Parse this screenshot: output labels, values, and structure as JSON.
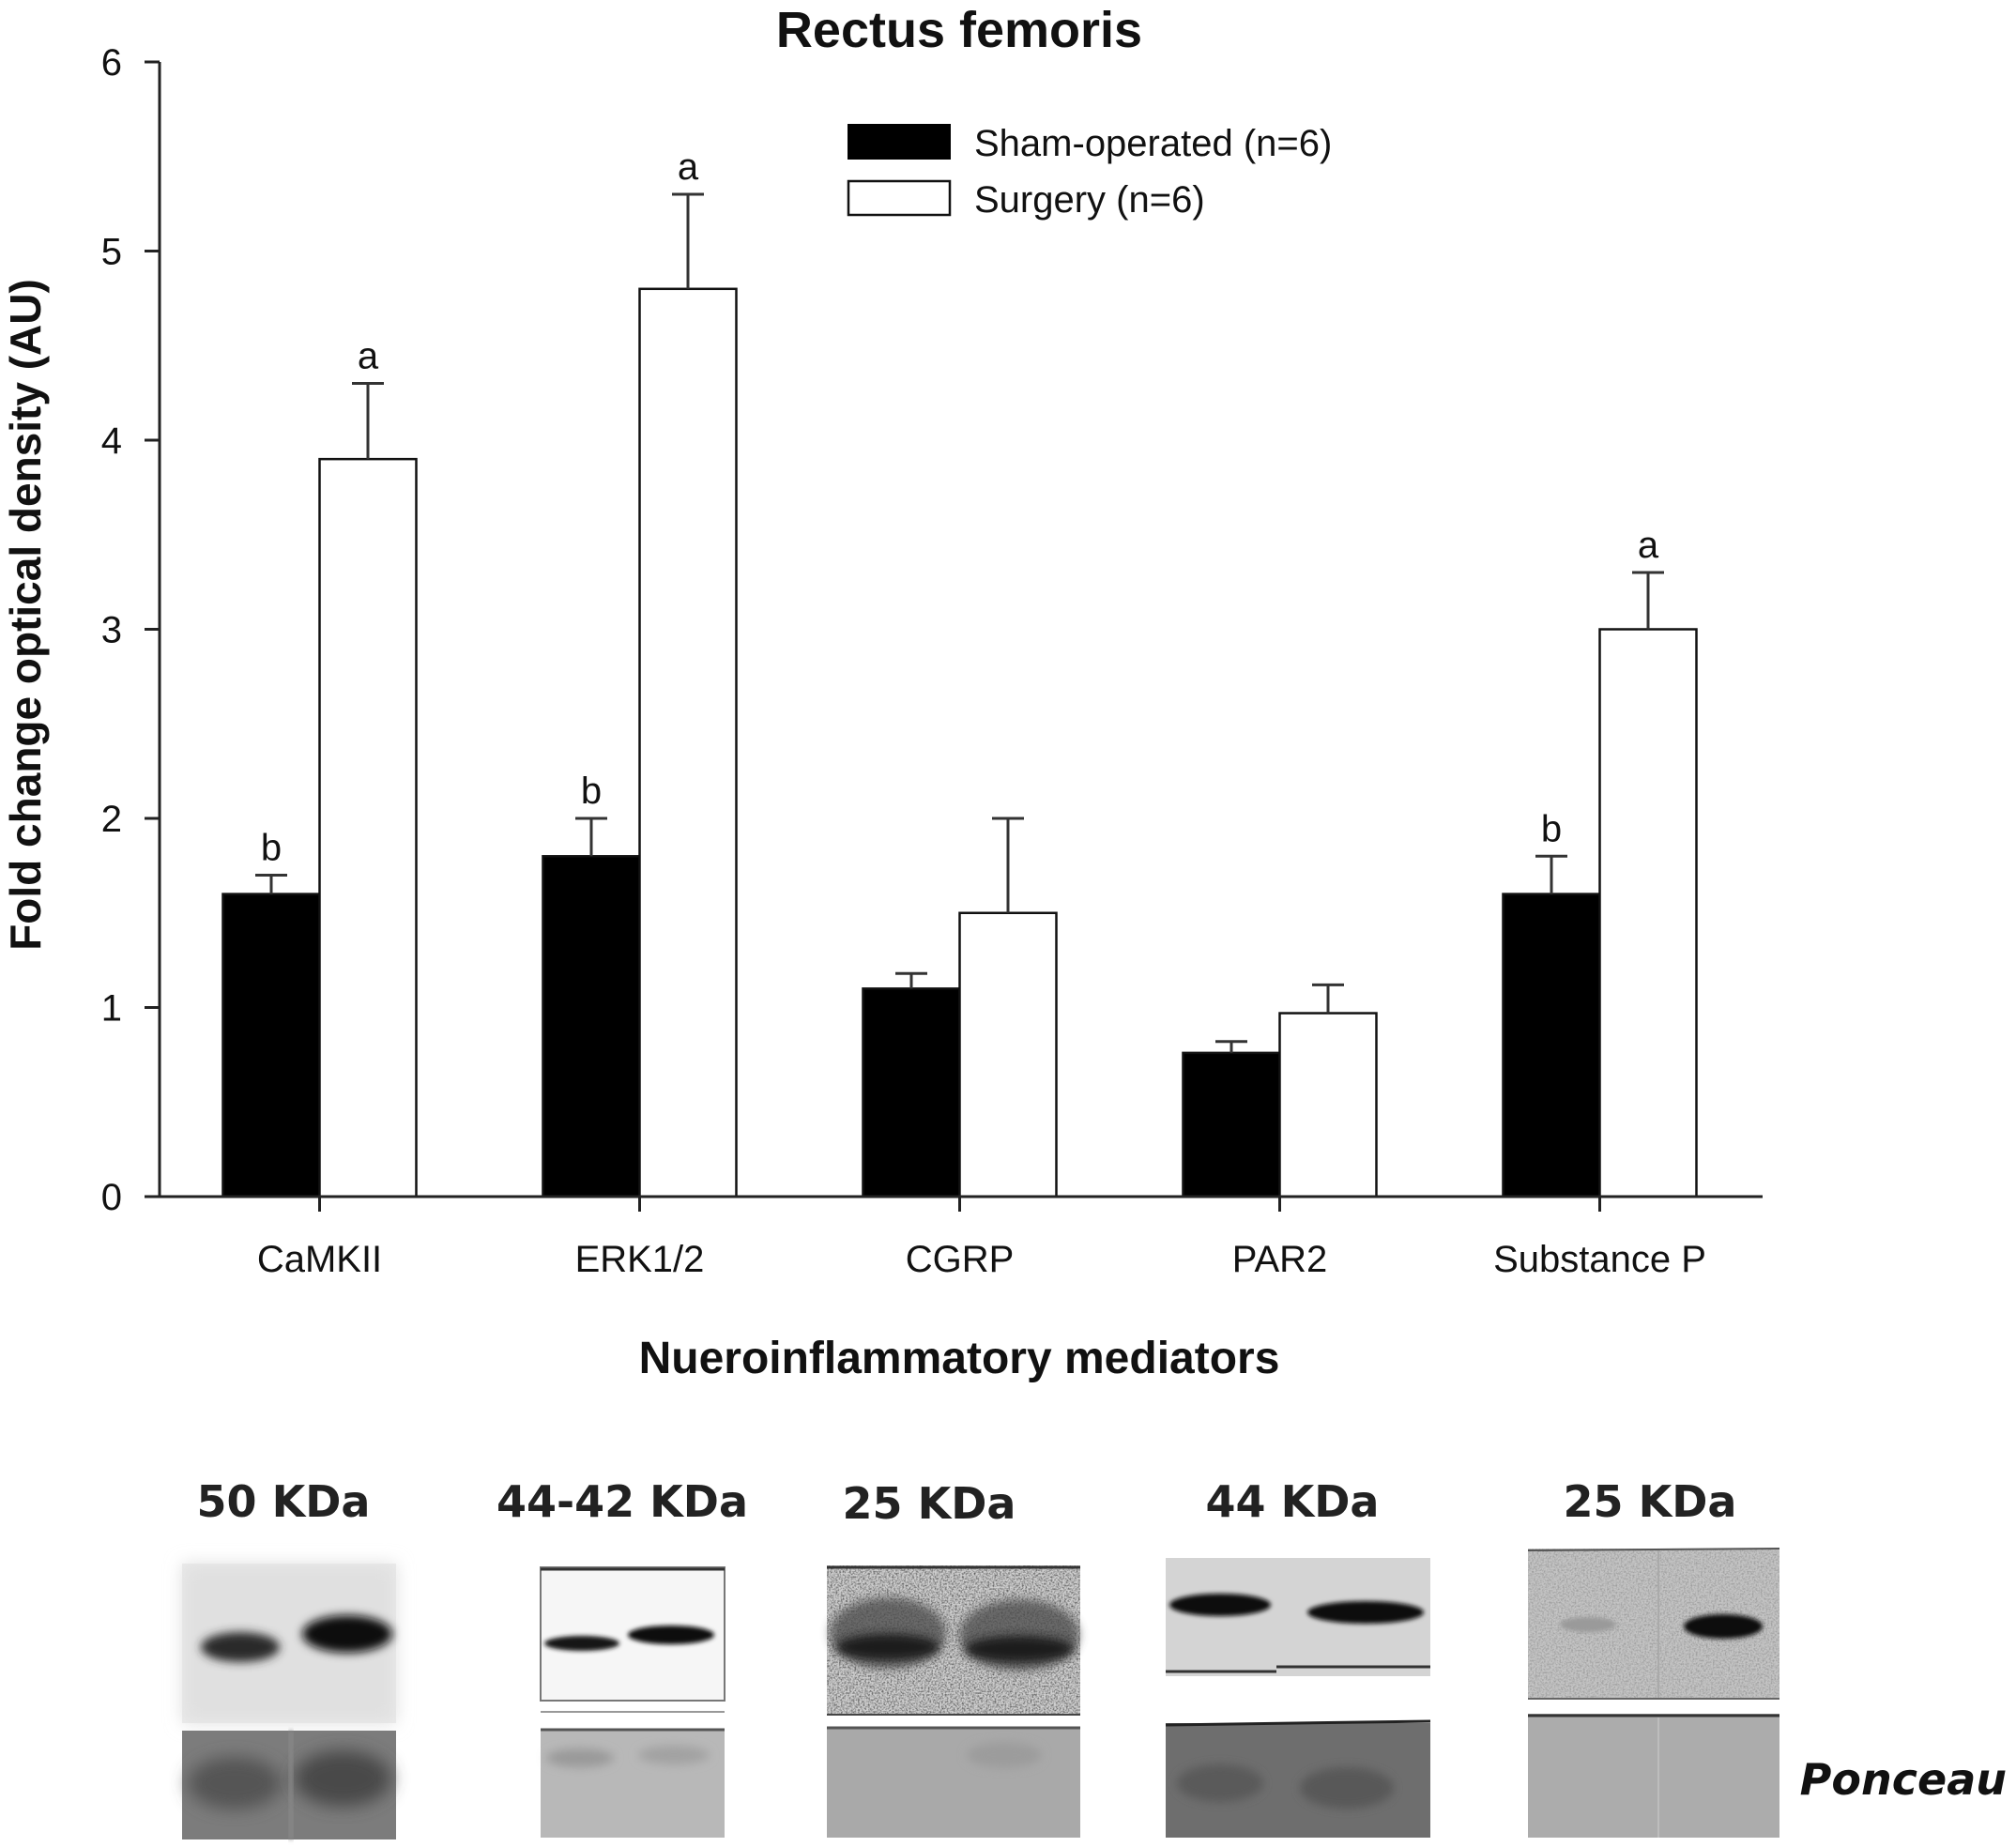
{
  "chart_data": {
    "type": "bar",
    "title": "Rectus femoris",
    "xlabel": "Nueroinflammatory mediators",
    "ylabel": "Fold change optical density (AU)",
    "ylim": [
      0,
      6
    ],
    "yticks": [
      "0",
      "1",
      "2",
      "3",
      "4",
      "5",
      "6"
    ],
    "grid": false,
    "legend_position": "top-right",
    "categories": [
      "CaMKII",
      "ERK1/2",
      "CGRP",
      "PAR2",
      "Substance P"
    ],
    "series": [
      {
        "name": "Sham-operated (n=6)",
        "color": "#000000",
        "values": [
          1.6,
          1.8,
          1.1,
          0.76,
          1.6
        ],
        "errors": [
          0.1,
          0.2,
          0.08,
          0.06,
          0.2
        ],
        "annotations": [
          "b",
          "b",
          "",
          "",
          "b"
        ]
      },
      {
        "name": "Surgery (n=6)",
        "color": "#ffffff",
        "values": [
          3.9,
          4.8,
          1.5,
          0.97,
          3.0
        ],
        "errors": [
          0.4,
          0.5,
          0.5,
          0.15,
          0.3
        ],
        "annotations": [
          "a",
          "a",
          "",
          "",
          "a"
        ]
      }
    ]
  },
  "blots": {
    "sizes": [
      "50 KDa",
      "44-42 KDa",
      "25 KDa",
      "44 KDa",
      "25 KDa"
    ],
    "loading_control_label": "Ponceau"
  }
}
